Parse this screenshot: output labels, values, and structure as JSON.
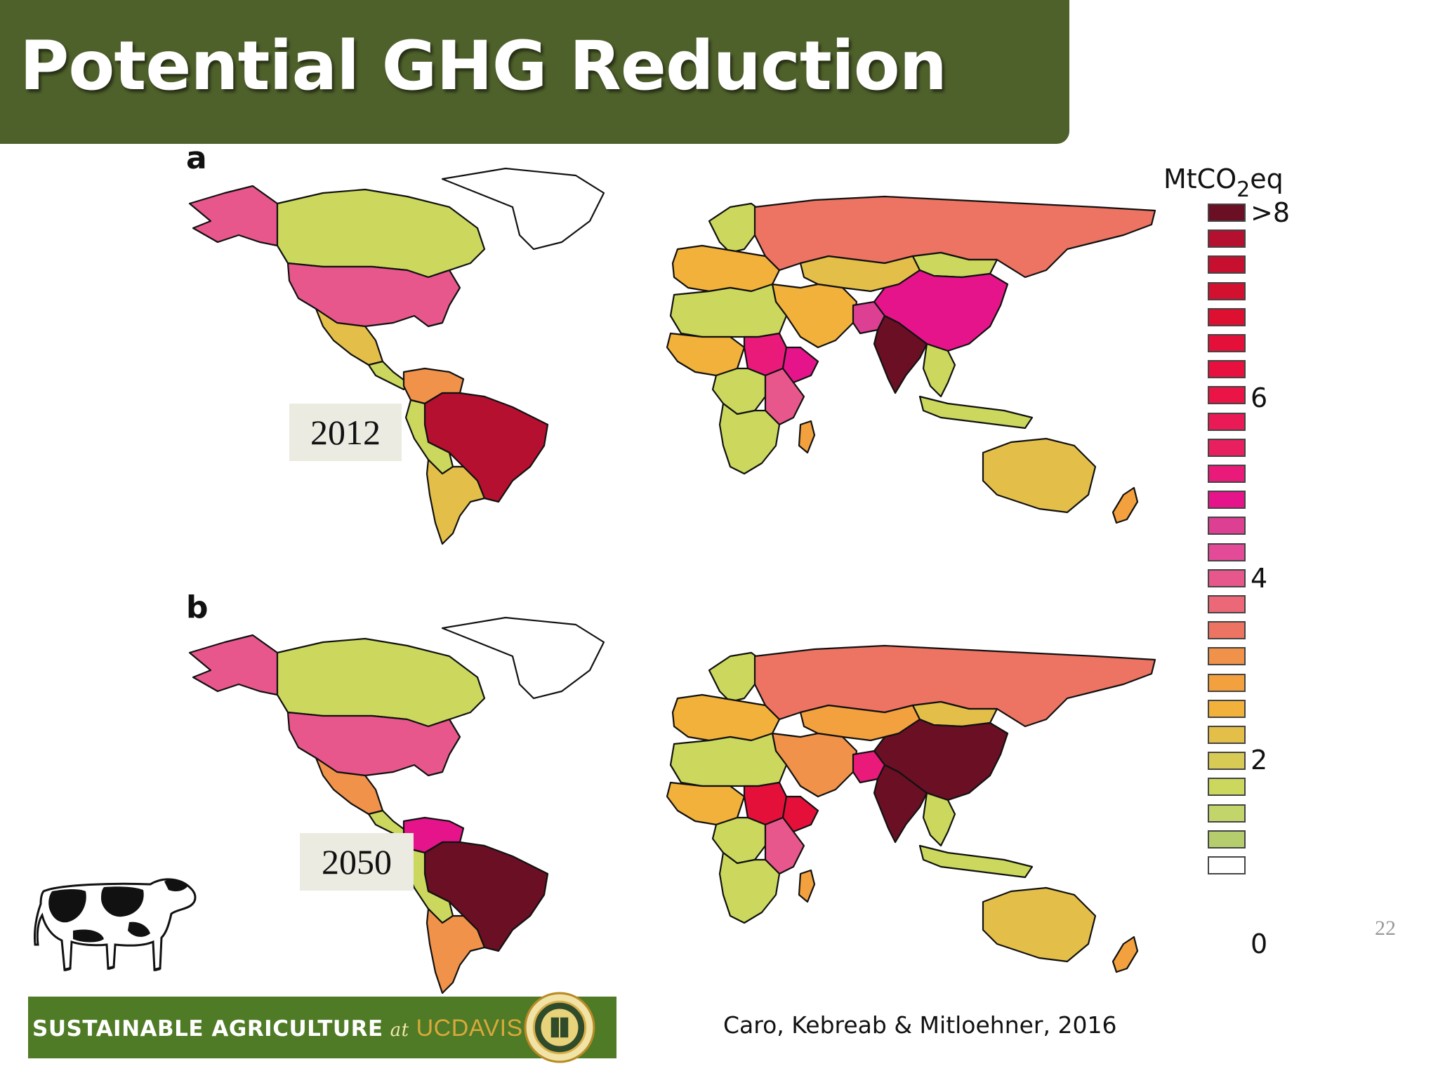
{
  "slide": {
    "title": "Potential GHG Reduction",
    "page_number": "22",
    "citation": "Caro, Kebreab & Mitloehner, 2016"
  },
  "panels": [
    {
      "letter": "a",
      "year": "2012"
    },
    {
      "letter": "b",
      "year": "2050"
    }
  ],
  "legend": {
    "title_main": "MtCO",
    "title_sub": "2",
    "title_end": "eq",
    "labels": [
      ">8",
      "6",
      "4",
      "2",
      "0"
    ],
    "colors": [
      "#6a0f24",
      "#b5102f",
      "#c7102f",
      "#d2102f",
      "#dd1031",
      "#e4103a",
      "#e8103e",
      "#ea1446",
      "#e91a55",
      "#e8205f",
      "#e91a7a",
      "#e6148b",
      "#dd3f93",
      "#e34a98",
      "#e8578c",
      "#ec6878",
      "#ed7462",
      "#f0924a",
      "#f3a13f",
      "#f1b13a",
      "#e3bf4a",
      "#d8cb55",
      "#cbd85d",
      "#c2d56a",
      "#b5cd6c",
      "#ffffff"
    ]
  },
  "logo": {
    "text_left": "SUSTAINABLE AGRICULTURE",
    "text_at": "at",
    "text_uc": "UCDAVIS"
  },
  "cow": {
    "icon": "holstein-cow-icon"
  },
  "maps": {
    "2012": {
      "alaska": "#e8578c",
      "canada": "#cbd85d",
      "usa": "#e8578c",
      "mexico": "#e3bf4a",
      "central_america": "#cbd85d",
      "colombia_venezuela": "#f0924a",
      "brazil": "#b5102f",
      "south_america_west": "#cbd85d",
      "argentina": "#e3bf4a",
      "greenland": "#ffffff",
      "europe": "#f1b13a",
      "scandinavia": "#cbd85d",
      "russia": "#ed7462",
      "kazakhstan": "#e3bf4a",
      "mongolia": "#cbd85d",
      "china": "#e6148b",
      "india": "#6a0f24",
      "pakistan": "#dd3f93",
      "middle_east": "#f1b13a",
      "north_africa": "#cbd85d",
      "west_africa": "#f1b13a",
      "sudan": "#e91a7a",
      "ethiopia": "#e6148b",
      "east_africa": "#e8578c",
      "central_africa": "#cbd85d",
      "southern_africa": "#cbd85d",
      "madagascar": "#f3a13f",
      "se_asia": "#cbd85d",
      "indonesia": "#cbd85d",
      "australia": "#e3bf4a",
      "nz": "#f3a13f"
    },
    "2050": {
      "alaska": "#e8578c",
      "canada": "#cbd85d",
      "usa": "#e8578c",
      "mexico": "#f0924a",
      "central_america": "#cbd85d",
      "colombia_venezuela": "#e6148b",
      "brazil": "#6a0f24",
      "south_america_west": "#cbd85d",
      "argentina": "#f0924a",
      "greenland": "#ffffff",
      "europe": "#f1b13a",
      "scandinavia": "#cbd85d",
      "russia": "#ed7462",
      "kazakhstan": "#f3a13f",
      "mongolia": "#e3bf4a",
      "china": "#6a0f24",
      "india": "#6a0f24",
      "pakistan": "#e91a7a",
      "middle_east": "#f0924a",
      "north_africa": "#cbd85d",
      "west_africa": "#f1b13a",
      "sudan": "#e4103a",
      "ethiopia": "#e4103a",
      "east_africa": "#e8578c",
      "central_africa": "#cbd85d",
      "southern_africa": "#cbd85d",
      "madagascar": "#f3a13f",
      "se_asia": "#cbd85d",
      "indonesia": "#cbd85d",
      "australia": "#e3bf4a",
      "nz": "#f3a13f"
    }
  }
}
